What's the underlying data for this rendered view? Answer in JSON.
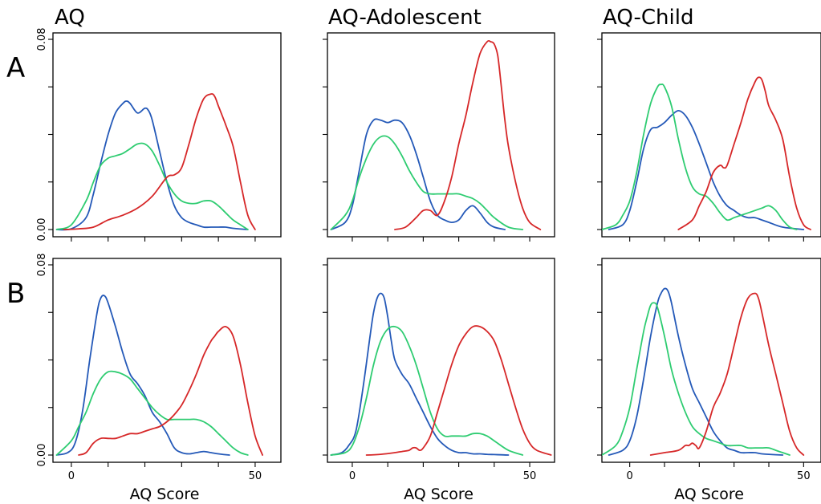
{
  "colors": {
    "red": "#d62728",
    "blue": "#2459b8",
    "green": "#2ecc71"
  },
  "y_tick_labels": [
    "0.00",
    "0.08"
  ],
  "x_tick_labels": [
    "0",
    "50"
  ],
  "x_axis_title": "AQ Score",
  "column_titles": [
    "AQ",
    "AQ-Adolescent",
    "AQ-Child"
  ],
  "row_labels": [
    "A",
    "B"
  ],
  "chart_data": [
    {
      "type": "line",
      "row": "A",
      "title": "AQ",
      "xlabel": "",
      "ylabel": "",
      "xlim": [
        -5,
        57
      ],
      "ylim": [
        -0.001,
        0.08
      ],
      "series": [
        {
          "color": "blue",
          "x": [
            -4,
            0,
            4,
            6,
            8,
            10,
            12,
            14,
            15,
            16,
            18,
            20,
            21,
            22,
            24,
            26,
            28,
            30,
            32,
            34,
            36,
            38,
            40,
            42,
            44,
            48
          ],
          "y": [
            0,
            0.0003,
            0.005,
            0.015,
            0.028,
            0.04,
            0.049,
            0.053,
            0.054,
            0.053,
            0.049,
            0.051,
            0.05,
            0.046,
            0.033,
            0.02,
            0.01,
            0.005,
            0.003,
            0.002,
            0.001,
            0.001,
            0.001,
            0.001,
            0.0005,
            0
          ]
        },
        {
          "color": "green",
          "x": [
            -4,
            0,
            4,
            6,
            8,
            10,
            12,
            14,
            16,
            18,
            20,
            22,
            24,
            26,
            28,
            30,
            32,
            34,
            36,
            38,
            40,
            42,
            44,
            46,
            48
          ],
          "y": [
            0,
            0.002,
            0.012,
            0.02,
            0.027,
            0.03,
            0.031,
            0.032,
            0.034,
            0.036,
            0.036,
            0.033,
            0.027,
            0.02,
            0.015,
            0.012,
            0.011,
            0.011,
            0.012,
            0.012,
            0.01,
            0.007,
            0.004,
            0.002,
            0
          ]
        },
        {
          "color": "red",
          "x": [
            -2,
            2,
            6,
            10,
            14,
            18,
            22,
            26,
            28,
            30,
            32,
            34,
            36,
            38,
            39,
            40,
            42,
            44,
            46,
            48,
            50
          ],
          "y": [
            0,
            0.0003,
            0.001,
            0.004,
            0.006,
            0.009,
            0.014,
            0.022,
            0.023,
            0.026,
            0.036,
            0.047,
            0.055,
            0.057,
            0.056,
            0.052,
            0.044,
            0.035,
            0.02,
            0.006,
            0
          ]
        }
      ]
    },
    {
      "type": "line",
      "row": "A",
      "title": "AQ-Adolescent",
      "xlabel": "",
      "ylabel": "",
      "xlim": [
        -7,
        57
      ],
      "ylim": [
        -0.001,
        0.08
      ],
      "series": [
        {
          "color": "blue",
          "x": [
            -6,
            -2,
            0,
            2,
            4,
            6,
            8,
            10,
            12,
            14,
            16,
            18,
            20,
            22,
            24,
            26,
            28,
            30,
            32,
            34,
            36,
            38,
            40,
            43
          ],
          "y": [
            0,
            0.003,
            0.01,
            0.025,
            0.04,
            0.046,
            0.046,
            0.045,
            0.046,
            0.045,
            0.04,
            0.032,
            0.022,
            0.012,
            0.006,
            0.004,
            0.003,
            0.004,
            0.008,
            0.01,
            0.007,
            0.003,
            0.001,
            0
          ]
        },
        {
          "color": "green",
          "x": [
            -6,
            -2,
            0,
            2,
            4,
            6,
            8,
            10,
            12,
            14,
            16,
            18,
            20,
            22,
            24,
            26,
            28,
            30,
            32,
            34,
            36,
            38,
            40,
            44,
            48
          ],
          "y": [
            0,
            0.006,
            0.012,
            0.022,
            0.03,
            0.036,
            0.039,
            0.039,
            0.036,
            0.031,
            0.025,
            0.02,
            0.016,
            0.015,
            0.015,
            0.015,
            0.015,
            0.015,
            0.014,
            0.013,
            0.011,
            0.008,
            0.005,
            0.001,
            0
          ]
        },
        {
          "color": "red",
          "x": [
            12,
            15,
            18,
            20,
            22,
            24,
            26,
            28,
            30,
            32,
            34,
            36,
            38,
            39,
            40,
            41,
            42,
            43,
            44,
            46,
            48,
            50,
            53
          ],
          "y": [
            0,
            0.001,
            0.005,
            0.008,
            0.008,
            0.006,
            0.012,
            0.022,
            0.036,
            0.048,
            0.062,
            0.074,
            0.079,
            0.079,
            0.078,
            0.073,
            0.06,
            0.046,
            0.035,
            0.02,
            0.009,
            0.003,
            0
          ]
        }
      ]
    },
    {
      "type": "line",
      "row": "A",
      "title": "AQ-Child",
      "xlabel": "",
      "ylabel": "",
      "xlim": [
        -8,
        55
      ],
      "ylim": [
        -0.001,
        0.08
      ],
      "series": [
        {
          "color": "blue",
          "x": [
            -6,
            -2,
            0,
            2,
            4,
            6,
            8,
            10,
            12,
            14,
            16,
            18,
            20,
            22,
            24,
            26,
            28,
            30,
            32,
            34,
            36,
            38,
            40,
            44,
            50
          ],
          "y": [
            0,
            0.002,
            0.008,
            0.02,
            0.034,
            0.042,
            0.043,
            0.045,
            0.048,
            0.05,
            0.048,
            0.043,
            0.036,
            0.028,
            0.02,
            0.014,
            0.01,
            0.008,
            0.006,
            0.005,
            0.005,
            0.004,
            0.003,
            0.001,
            0
          ]
        },
        {
          "color": "green",
          "x": [
            -8,
            -4,
            -2,
            0,
            2,
            4,
            6,
            8,
            9,
            10,
            12,
            14,
            16,
            18,
            20,
            22,
            24,
            26,
            28,
            30,
            32,
            34,
            36,
            38,
            40,
            42,
            44,
            46,
            48
          ],
          "y": [
            0,
            0.002,
            0.006,
            0.012,
            0.024,
            0.04,
            0.053,
            0.06,
            0.061,
            0.06,
            0.052,
            0.038,
            0.026,
            0.018,
            0.015,
            0.014,
            0.011,
            0.007,
            0.004,
            0.005,
            0.006,
            0.007,
            0.008,
            0.009,
            0.01,
            0.008,
            0.004,
            0.001,
            0
          ]
        },
        {
          "color": "red",
          "x": [
            14,
            18,
            20,
            22,
            24,
            26,
            27,
            28,
            30,
            32,
            34,
            36,
            37,
            38,
            39,
            40,
            42,
            44,
            46,
            48,
            50,
            52
          ],
          "y": [
            0,
            0.004,
            0.01,
            0.016,
            0.024,
            0.027,
            0.026,
            0.027,
            0.036,
            0.045,
            0.055,
            0.062,
            0.064,
            0.063,
            0.058,
            0.052,
            0.046,
            0.038,
            0.022,
            0.009,
            0.002,
            0
          ]
        }
      ]
    },
    {
      "type": "line",
      "row": "B",
      "title": "",
      "xlabel": "AQ Score",
      "ylabel": "",
      "xlim": [
        -5,
        57
      ],
      "ylim": [
        -0.001,
        0.08
      ],
      "series": [
        {
          "color": "blue",
          "x": [
            -4,
            -1,
            1,
            3,
            5,
            7,
            8,
            9,
            10,
            12,
            14,
            16,
            18,
            20,
            22,
            24,
            26,
            28,
            30,
            32,
            34,
            36,
            38,
            40,
            43
          ],
          "y": [
            0,
            0.001,
            0.005,
            0.018,
            0.04,
            0.06,
            0.066,
            0.067,
            0.064,
            0.054,
            0.043,
            0.034,
            0.03,
            0.025,
            0.018,
            0.014,
            0.009,
            0.003,
            0.001,
            0.0005,
            0.001,
            0.0015,
            0.001,
            0.0005,
            0
          ]
        },
        {
          "color": "green",
          "x": [
            -4,
            0,
            2,
            4,
            6,
            8,
            10,
            12,
            14,
            16,
            18,
            20,
            22,
            24,
            26,
            28,
            30,
            32,
            34,
            36,
            38,
            40,
            42,
            44,
            46,
            48
          ],
          "y": [
            0,
            0.006,
            0.012,
            0.018,
            0.026,
            0.032,
            0.035,
            0.035,
            0.034,
            0.032,
            0.028,
            0.024,
            0.02,
            0.017,
            0.015,
            0.015,
            0.015,
            0.015,
            0.015,
            0.014,
            0.012,
            0.009,
            0.006,
            0.003,
            0.001,
            0
          ]
        },
        {
          "color": "red",
          "x": [
            2,
            4,
            6,
            8,
            10,
            12,
            14,
            16,
            18,
            20,
            22,
            24,
            26,
            28,
            30,
            32,
            34,
            36,
            38,
            39,
            40,
            42,
            44,
            46,
            48,
            50,
            52
          ],
          "y": [
            0,
            0.001,
            0.005,
            0.007,
            0.007,
            0.007,
            0.008,
            0.009,
            0.009,
            0.01,
            0.011,
            0.012,
            0.014,
            0.017,
            0.021,
            0.027,
            0.034,
            0.042,
            0.048,
            0.05,
            0.052,
            0.054,
            0.05,
            0.038,
            0.022,
            0.008,
            0
          ]
        }
      ]
    },
    {
      "type": "line",
      "row": "B",
      "title": "",
      "xlabel": "AQ Score",
      "ylabel": "",
      "xlim": [
        -7,
        57
      ],
      "ylim": [
        -0.001,
        0.08
      ],
      "series": [
        {
          "color": "blue",
          "x": [
            -6,
            -3,
            -1,
            1,
            3,
            5,
            6,
            7,
            8,
            9,
            10,
            11,
            12,
            14,
            16,
            18,
            20,
            22,
            24,
            26,
            28,
            30,
            32,
            34,
            36,
            38,
            40,
            42,
            44
          ],
          "y": [
            0,
            0.001,
            0.004,
            0.01,
            0.028,
            0.05,
            0.06,
            0.066,
            0.068,
            0.066,
            0.058,
            0.048,
            0.04,
            0.034,
            0.03,
            0.024,
            0.018,
            0.012,
            0.007,
            0.004,
            0.002,
            0.001,
            0.001,
            0.0005,
            0.0005,
            0.0003,
            0.0002,
            0.0001,
            0
          ]
        },
        {
          "color": "green",
          "x": [
            -6,
            -2,
            0,
            2,
            4,
            6,
            8,
            10,
            12,
            14,
            16,
            18,
            20,
            22,
            24,
            26,
            28,
            30,
            32,
            34,
            36,
            38,
            40,
            44,
            48
          ],
          "y": [
            0,
            0.001,
            0.004,
            0.012,
            0.024,
            0.038,
            0.048,
            0.053,
            0.054,
            0.052,
            0.046,
            0.038,
            0.028,
            0.018,
            0.011,
            0.008,
            0.008,
            0.008,
            0.008,
            0.009,
            0.009,
            0.008,
            0.006,
            0.002,
            0
          ]
        },
        {
          "color": "red",
          "x": [
            4,
            8,
            12,
            14,
            16,
            17,
            18,
            19,
            20,
            22,
            24,
            26,
            28,
            30,
            32,
            34,
            36,
            38,
            40,
            42,
            44,
            46,
            48,
            50,
            52,
            56
          ],
          "y": [
            0,
            0.0003,
            0.001,
            0.0015,
            0.002,
            0.003,
            0.003,
            0.002,
            0.003,
            0.008,
            0.018,
            0.028,
            0.038,
            0.046,
            0.051,
            0.054,
            0.054,
            0.052,
            0.048,
            0.04,
            0.03,
            0.02,
            0.011,
            0.005,
            0.002,
            0
          ]
        }
      ]
    },
    {
      "type": "line",
      "row": "B",
      "title": "",
      "xlabel": "AQ Score",
      "ylabel": "",
      "xlim": [
        -8,
        55
      ],
      "ylim": [
        -0.001,
        0.08
      ],
      "series": [
        {
          "color": "blue",
          "x": [
            -6,
            -2,
            0,
            2,
            4,
            6,
            8,
            9,
            10,
            11,
            12,
            14,
            16,
            18,
            20,
            22,
            24,
            26,
            28,
            30,
            32,
            34,
            36,
            38,
            40,
            44
          ],
          "y": [
            0,
            0.002,
            0.006,
            0.016,
            0.032,
            0.05,
            0.064,
            0.068,
            0.07,
            0.069,
            0.064,
            0.05,
            0.038,
            0.028,
            0.022,
            0.016,
            0.01,
            0.006,
            0.003,
            0.002,
            0.001,
            0.001,
            0.001,
            0.0005,
            0.0003,
            0
          ]
        },
        {
          "color": "green",
          "x": [
            -8,
            -4,
            -2,
            0,
            2,
            4,
            5,
            6,
            7,
            8,
            10,
            12,
            14,
            16,
            18,
            20,
            22,
            24,
            26,
            28,
            30,
            32,
            34,
            36,
            38,
            40,
            42,
            44,
            46
          ],
          "y": [
            0,
            0.004,
            0.01,
            0.02,
            0.036,
            0.052,
            0.058,
            0.063,
            0.064,
            0.062,
            0.05,
            0.036,
            0.026,
            0.018,
            0.012,
            0.009,
            0.007,
            0.006,
            0.005,
            0.004,
            0.004,
            0.004,
            0.003,
            0.003,
            0.003,
            0.003,
            0.002,
            0.001,
            0
          ]
        },
        {
          "color": "red",
          "x": [
            6,
            10,
            14,
            16,
            17,
            18,
            19,
            20,
            22,
            24,
            26,
            28,
            30,
            32,
            34,
            36,
            37,
            38,
            40,
            42,
            44,
            46,
            48,
            50
          ],
          "y": [
            0,
            0.001,
            0.002,
            0.004,
            0.004,
            0.005,
            0.004,
            0.003,
            0.01,
            0.02,
            0.026,
            0.034,
            0.046,
            0.058,
            0.066,
            0.068,
            0.066,
            0.06,
            0.046,
            0.034,
            0.022,
            0.01,
            0.003,
            0
          ]
        }
      ]
    }
  ]
}
